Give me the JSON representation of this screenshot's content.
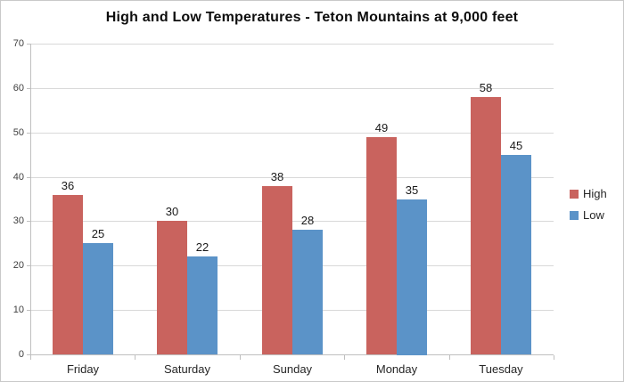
{
  "chart_data": {
    "type": "bar",
    "title": "High and Low Temperatures - Teton Mountains at 9,000 feet",
    "categories": [
      "Friday",
      "Saturday",
      "Sunday",
      "Monday",
      "Tuesday"
    ],
    "series": [
      {
        "name": "High",
        "color": "#c9635e",
        "values": [
          36,
          30,
          38,
          49,
          58
        ]
      },
      {
        "name": "Low",
        "color": "#5b93c8",
        "values": [
          25,
          22,
          28,
          35,
          45
        ]
      }
    ],
    "xlabel": "",
    "ylabel": "",
    "ylim": [
      0,
      70
    ],
    "ytick_step": 10,
    "yticks": [
      0,
      10,
      20,
      30,
      40,
      50,
      60,
      70
    ],
    "grid": "horizontal",
    "data_labels": true,
    "legend_position": "right"
  }
}
